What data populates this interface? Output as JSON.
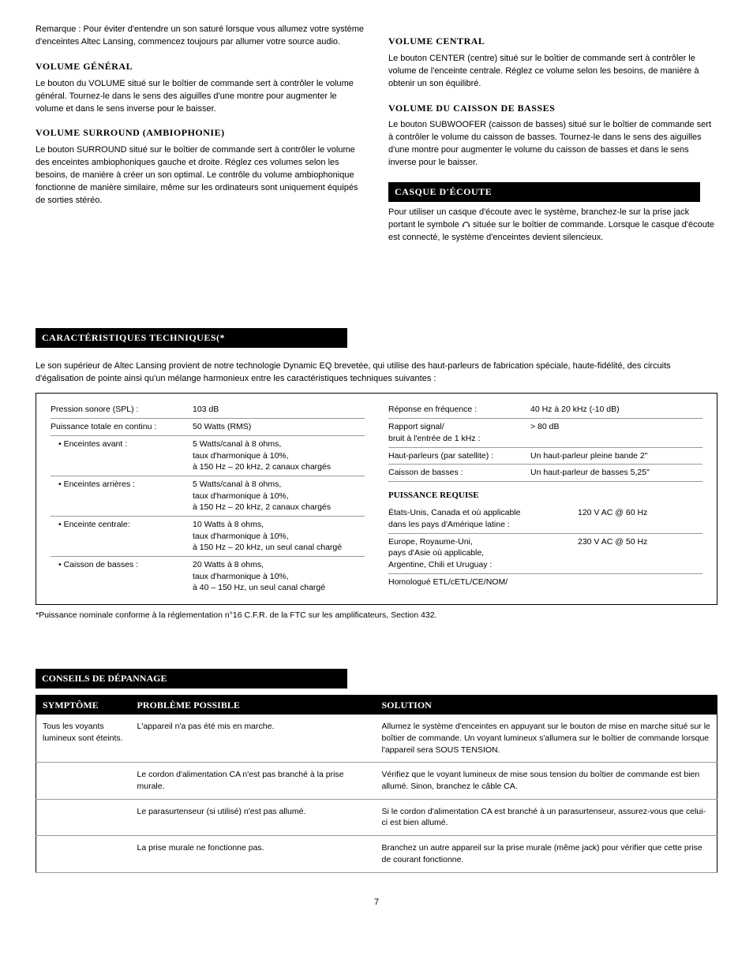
{
  "intro": {
    "remark": "Remarque : Pour éviter d'entendre un son saturé lorsque vous allumez votre système d'enceintes Altec Lansing, commencez toujours par allumer votre source audio."
  },
  "sections_left": {
    "volume_general": {
      "title": "VOLUME GÉNÉRAL",
      "body": "Le bouton du VOLUME situé sur le boîtier de commande sert à contrôler le volume général. Tournez-le dans le sens des aiguilles d'une montre pour augmenter le volume et dans le sens inverse pour le baisser."
    },
    "volume_surround": {
      "title": "VOLUME SURROUND (AMBIOPHONIE)",
      "body": "Le bouton SURROUND situé sur le boîtier de commande sert à contrôler le volume des enceintes ambiophoniques gauche et droite. Réglez ces volumes selon les besoins, de manière à créer un son optimal. Le contrôle du volume ambiophonique fonctionne de manière similaire, même sur les ordinateurs sont uniquement équipés de sorties stéréo."
    }
  },
  "sections_right": {
    "volume_central": {
      "title": "VOLUME CENTRAL",
      "body": "Le bouton CENTER (centre) situé sur le boîtier de commande sert à contrôler le volume de l'enceinte centrale. Réglez ce volume selon les besoins, de manière à obtenir un son équilibré."
    },
    "volume_basses": {
      "title": "VOLUME DU CAISSON DE BASSES",
      "body": "Le bouton SUBWOOFER (caisson de basses) situé sur le boîtier de commande sert à contrôler le volume du caisson de basses. Tournez-le dans le sens des aiguilles d'une montre pour augmenter le volume du caisson de basses et dans le sens inverse pour le baisser."
    },
    "casque": {
      "title": "CASQUE D'ÉCOUTE",
      "body_pre": "Pour utiliser un casque d'écoute avec le système, branchez-le sur la prise jack portant le symbole ",
      "body_post": " située sur le boîtier de commande. Lorsque le casque d'écoute est connecté, le système d'enceintes devient silencieux."
    }
  },
  "specs": {
    "title": "CARACTÉRISTIQUES TECHNIQUES(*",
    "intro": "Le son supérieur de Altec Lansing provient de notre technologie Dynamic EQ brevetée, qui utilise des haut-parleurs de fabrication spéciale, haute-fidélité, des circuits d'égalisation de pointe ainsi qu'un mélange harmonieux entre les caractéristiques techniques suivantes :",
    "left_rows": [
      {
        "label": "Pression sonore (SPL) :",
        "value": "103 dB"
      },
      {
        "label": "Puissance totale en continu :",
        "value": "50 Watts (RMS)"
      },
      {
        "label": "• Enceintes avant :",
        "value": "5 Watts/canal à 8 ohms,\ntaux d'harmonique à 10%,\nà 150 Hz – 20 kHz, 2 canaux chargés",
        "sub": true
      },
      {
        "label": "• Enceintes arrières :",
        "value": "5 Watts/canal à 8 ohms,\ntaux d'harmonique à 10%,\nà 150 Hz – 20 kHz, 2 canaux chargés",
        "sub": true
      },
      {
        "label": "• Enceinte centrale:",
        "value": "10 Watts à 8 ohms,\ntaux d'harmonique à 10%,\nà 150 Hz – 20 kHz, un seul canal chargé",
        "sub": true
      },
      {
        "label": "• Caisson de basses :",
        "value": "20 Watts à 8 ohms,\ntaux d'harmonique à 10%,\nà 40 – 150 Hz, un seul canal chargé",
        "sub": true,
        "last": true
      }
    ],
    "right_rows": [
      {
        "label": "Réponse en fréquence :",
        "value": "40 Hz à 20 kHz (-10 dB)"
      },
      {
        "label": "Rapport signal/\nbruit à l'entrée de 1 kHz :",
        "value": "> 80 dB"
      },
      {
        "label": "Haut-parleurs (par satellite) :",
        "value": "Un haut-parleur pleine bande 2\""
      },
      {
        "label": "Caisson de basses :",
        "value": "Un haut-parleur de basses 5,25\""
      }
    ],
    "power_heading": "PUISSANCE REQUISE",
    "power_rows": [
      {
        "label": "États-Unis, Canada et où applicable\ndans les pays d'Amérique latine :",
        "value": "120 V AC @ 60 Hz"
      },
      {
        "label": "Europe, Royaume-Uni,\npays d'Asie où applicable,\nArgentine, Chili et Uruguay :",
        "value": "230 V AC @ 50 Hz"
      },
      {
        "label": "Homologué ETL/cETL/CE/NOM/",
        "value": "",
        "last": true
      }
    ],
    "footnote": "*Puissance nominale conforme à la réglementation n°16 C.F.R. de la FTC sur les amplificateurs, Section 432."
  },
  "troubleshoot": {
    "title": "CONSEILS DE DÉPANNAGE",
    "headers": {
      "symptom": "SYMPTÔME",
      "problem": "PROBLÈME POSSIBLE",
      "solution": "SOLUTION"
    },
    "rows": [
      {
        "symptom": "Tous les voyants lumineux sont éteints.",
        "problem": "L'appareil n'a pas été mis en marche.",
        "solution": "Allumez le système d'enceintes en appuyant sur le bouton de mise en marche situé sur le boîtier de commande. Un voyant lumineux s'allumera sur le boîtier de commande lorsque l'appareil sera SOUS TENSION."
      },
      {
        "symptom": "",
        "problem": "Le cordon d'alimentation CA n'est pas branché à la prise murale.",
        "solution": "Vérifiez que le voyant lumineux de mise sous tension du boîtier de commande est bien allumé. Sinon, branchez le câble CA."
      },
      {
        "symptom": "",
        "problem": "Le parasurtenseur (si utilisé) n'est pas allumé.",
        "solution": "Si le cordon d'alimentation CA est branché à un parasurtenseur, assurez-vous que celui-ci est bien allumé."
      },
      {
        "symptom": "",
        "problem": "La prise murale ne fonctionne pas.",
        "solution": "Branchez un autre appareil sur la prise murale (même jack) pour vérifier que cette prise de courant fonctionne."
      }
    ]
  },
  "page_number": "7"
}
